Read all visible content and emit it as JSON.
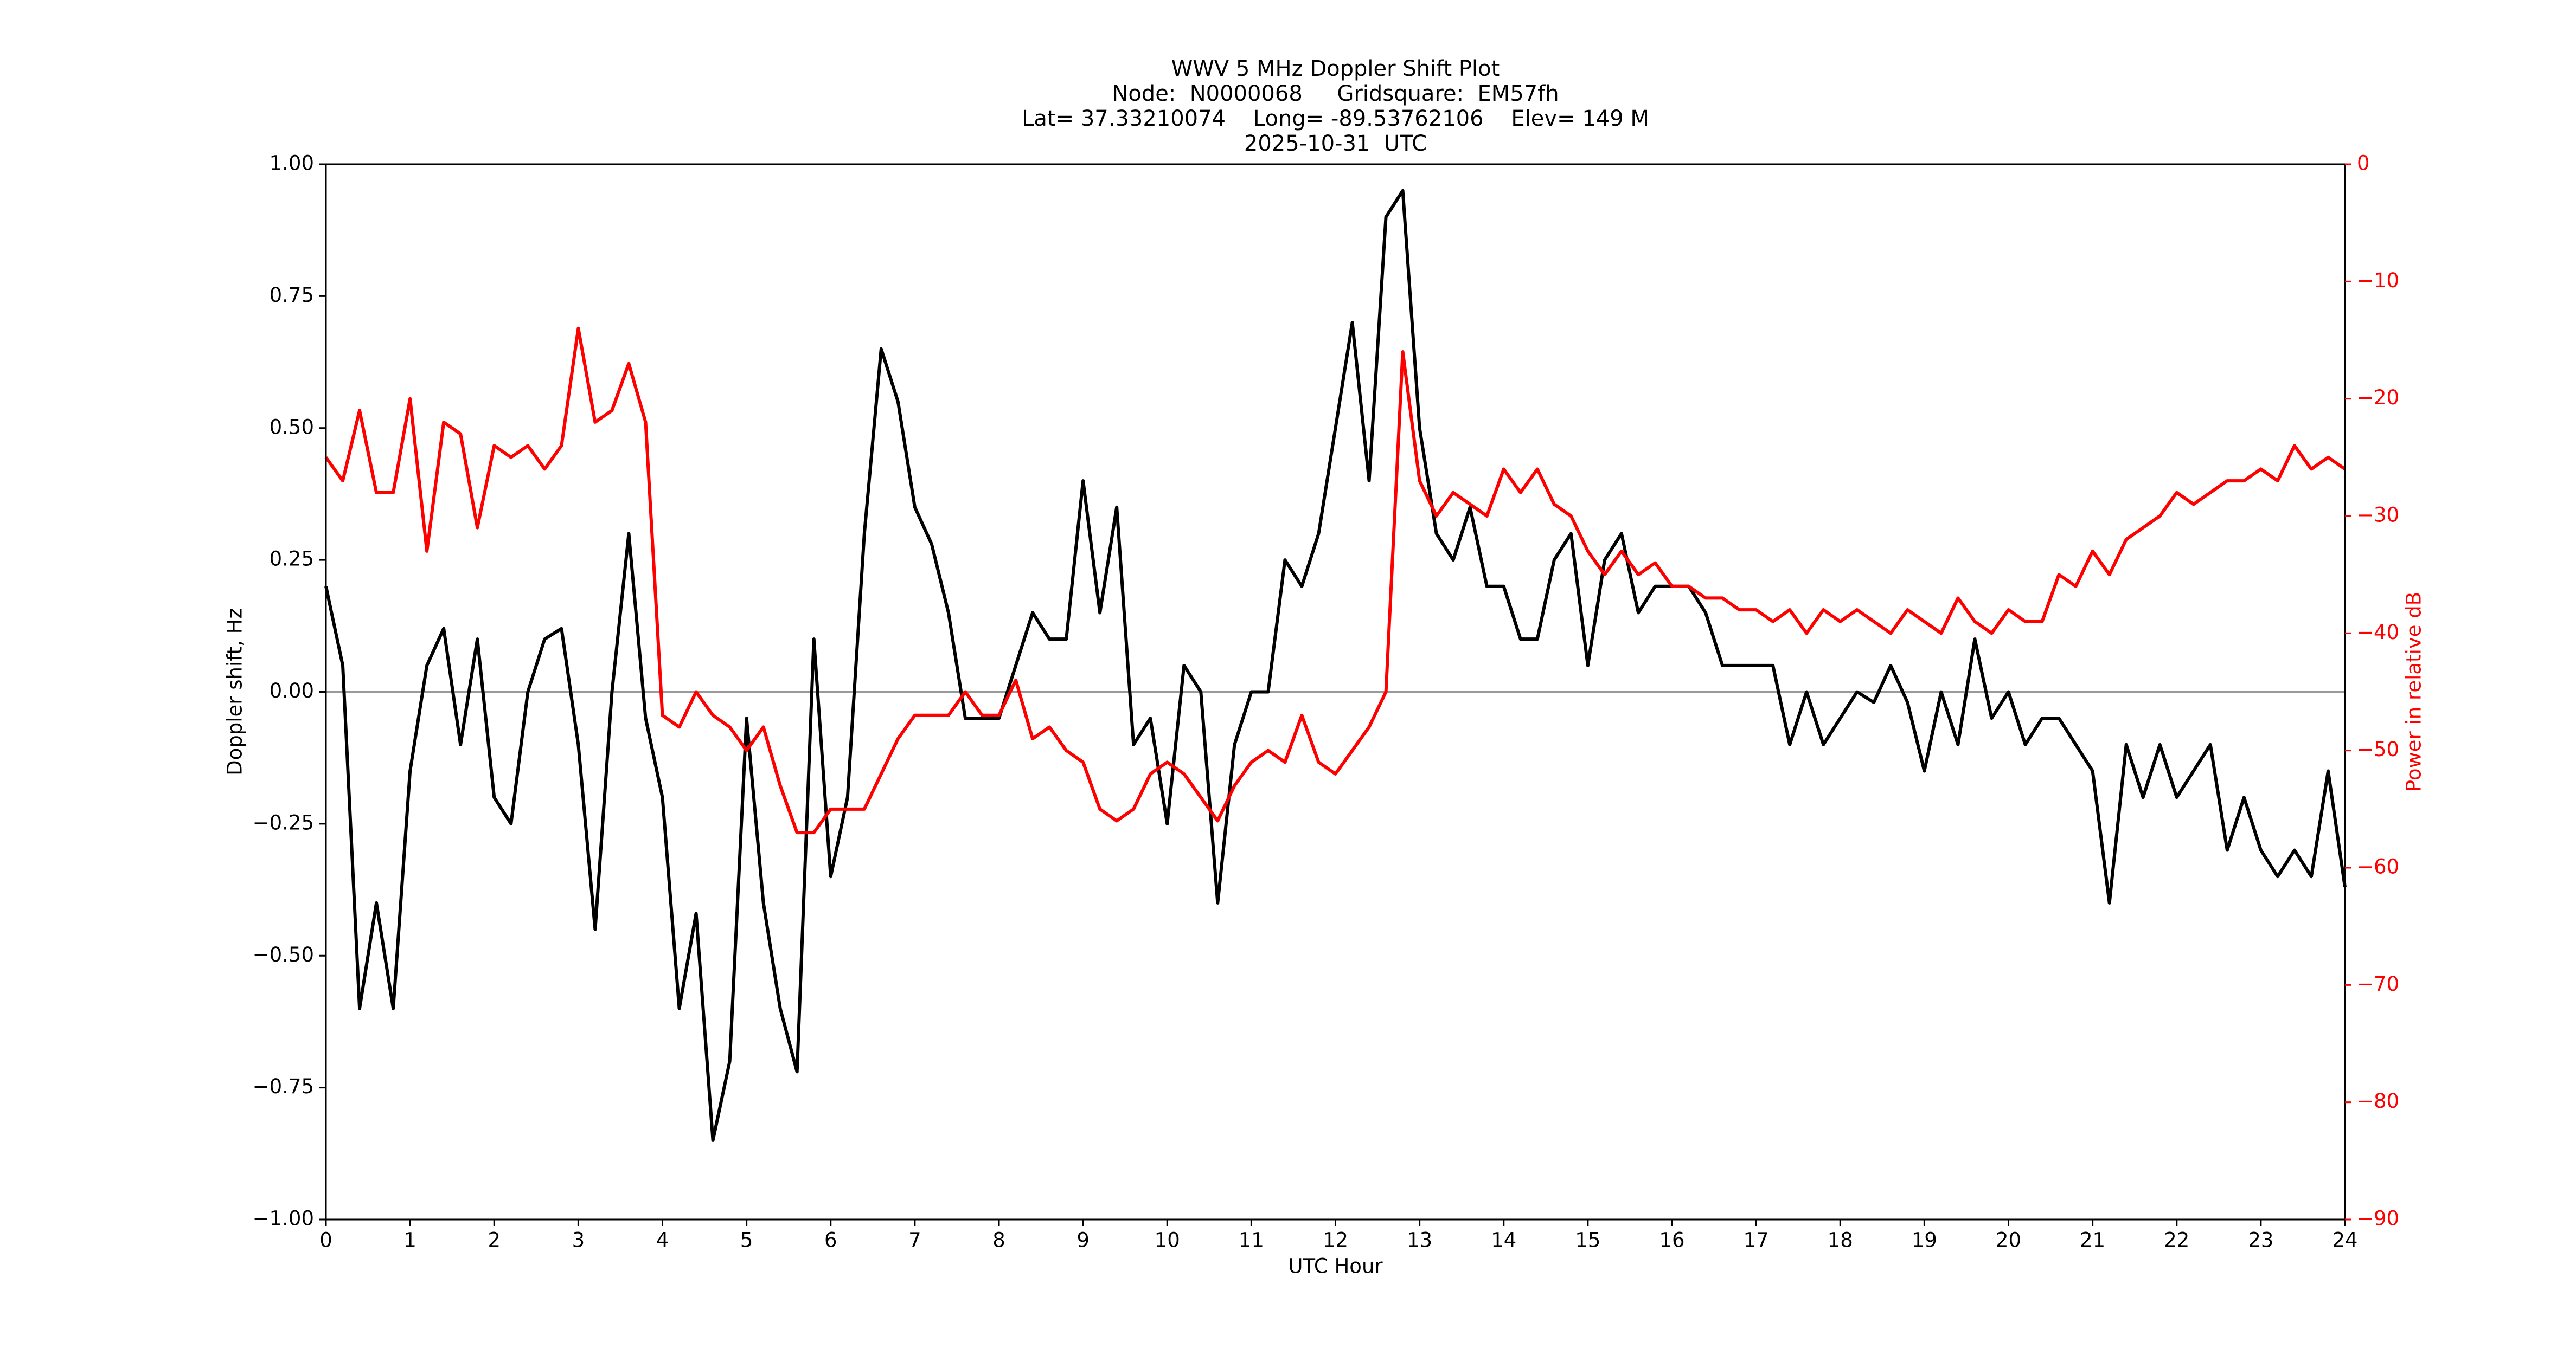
{
  "chart_data": {
    "type": "line",
    "title": [
      "WWV 5 MHz Doppler Shift Plot",
      "Node:  N0000068     Gridsquare:  EM57fh",
      "Lat= 37.33210074    Long= -89.53762106    Elev= 149 M",
      "2025-10-31  UTC"
    ],
    "x_label": "UTC Hour",
    "y_label": "Doppler shift, Hz",
    "y2_label": "Power in relative dB",
    "x": [
      0,
      0.2,
      0.4,
      0.6,
      0.8,
      1,
      1.2,
      1.4,
      1.6,
      1.8,
      2,
      2.2,
      2.4,
      2.6,
      2.8,
      3,
      3.2,
      3.4,
      3.6,
      3.8,
      4,
      4.2,
      4.4,
      4.6,
      4.8,
      5,
      5.2,
      5.4,
      5.6,
      5.8,
      6,
      6.2,
      6.4,
      6.6,
      6.8,
      7,
      7.2,
      7.4,
      7.6,
      7.8,
      8,
      8.2,
      8.4,
      8.6,
      8.8,
      9,
      9.2,
      9.4,
      9.6,
      9.8,
      10,
      10.2,
      10.4,
      10.6,
      10.8,
      11,
      11.2,
      11.4,
      11.6,
      11.8,
      12,
      12.2,
      12.4,
      12.6,
      12.8,
      13,
      13.2,
      13.4,
      13.6,
      13.8,
      14,
      14.2,
      14.4,
      14.6,
      14.8,
      15,
      15.2,
      15.4,
      15.6,
      15.8,
      16,
      16.2,
      16.4,
      16.6,
      16.8,
      17,
      17.2,
      17.4,
      17.6,
      17.8,
      18,
      18.2,
      18.4,
      18.6,
      18.8,
      19,
      19.2,
      19.4,
      19.6,
      19.8,
      20,
      20.2,
      20.4,
      20.6,
      20.8,
      21,
      21.2,
      21.4,
      21.6,
      21.8,
      22,
      22.2,
      22.4,
      22.6,
      22.8,
      23,
      23.2,
      23.4,
      23.6,
      23.8,
      24
    ],
    "series": [
      {
        "color": "#000000",
        "axis": "y",
        "values": [
          0.2,
          0.05,
          -0.6,
          -0.4,
          -0.6,
          -0.15,
          0.05,
          0.12,
          -0.1,
          0.1,
          -0.2,
          -0.25,
          0,
          0.1,
          0.12,
          -0.1,
          -0.45,
          0,
          0.3,
          -0.05,
          -0.2,
          -0.6,
          -0.42,
          -0.85,
          -0.7,
          -0.05,
          -0.4,
          -0.6,
          -0.72,
          0.1,
          -0.35,
          -0.2,
          0.3,
          0.65,
          0.55,
          0.35,
          0.28,
          0.15,
          -0.05,
          -0.05,
          -0.05,
          0.05,
          0.15,
          0.1,
          0.1,
          0.4,
          0.15,
          0.35,
          -0.1,
          -0.05,
          -0.25,
          0.05,
          0,
          -0.4,
          -0.1,
          0,
          0,
          0.25,
          0.2,
          0.3,
          0.5,
          0.7,
          0.4,
          0.9,
          0.95,
          0.5,
          0.3,
          0.25,
          0.35,
          0.2,
          0.2,
          0.1,
          0.1,
          0.25,
          0.3,
          0.05,
          0.25,
          0.3,
          0.15,
          0.2,
          0.2,
          0.2,
          0.15,
          0.05,
          0.05,
          0.05,
          0.05,
          -0.1,
          0,
          -0.1,
          -0.05,
          0,
          -0.02,
          0.05,
          -0.02,
          -0.15,
          0,
          -0.1,
          0.1,
          -0.05,
          0,
          -0.1,
          -0.05,
          -0.05,
          -0.1,
          -0.15,
          -0.4,
          -0.1,
          -0.2,
          -0.1,
          -0.2,
          -0.15,
          -0.1,
          -0.3,
          -0.2,
          -0.3,
          -0.35,
          -0.3,
          -0.35,
          -0.15,
          -0.37
        ]
      },
      {
        "color": "#ff0000",
        "axis": "y2",
        "values": [
          -25,
          -27,
          -21,
          -28,
          -28,
          -20,
          -33,
          -22,
          -23,
          -31,
          -24,
          -25,
          -24,
          -26,
          -24,
          -14,
          -22,
          -21,
          -17,
          -22,
          -47,
          -48,
          -45,
          -47,
          -48,
          -50,
          -48,
          -53,
          -57,
          -57,
          -55,
          -55,
          -55,
          -52,
          -49,
          -47,
          -47,
          -47,
          -45,
          -47,
          -47,
          -44,
          -49,
          -48,
          -50,
          -51,
          -55,
          -56,
          -55,
          -52,
          -51,
          -52,
          -54,
          -56,
          -53,
          -51,
          -50,
          -51,
          -47,
          -51,
          -52,
          -50,
          -48,
          -45,
          -16,
          -27,
          -30,
          -28,
          -29,
          -30,
          -26,
          -28,
          -26,
          -29,
          -30,
          -33,
          -35,
          -33,
          -35,
          -34,
          -36,
          -36,
          -37,
          -37,
          -38,
          -38,
          -39,
          -38,
          -40,
          -38,
          -39,
          -38,
          -39,
          -40,
          -38,
          -39,
          -40,
          -37,
          -39,
          -40,
          -38,
          -39,
          -39,
          -35,
          -36,
          -33,
          -35,
          -32,
          -31,
          -30,
          -28,
          -29,
          -28,
          -27,
          -27,
          -26,
          -27,
          -24,
          -26,
          -25,
          -26
        ]
      }
    ],
    "xlim": [
      0,
      24
    ],
    "xticks": [
      0,
      1,
      2,
      3,
      4,
      5,
      6,
      7,
      8,
      9,
      10,
      11,
      12,
      13,
      14,
      15,
      16,
      17,
      18,
      19,
      20,
      21,
      22,
      23,
      24
    ],
    "ylim": [
      -1,
      1
    ],
    "yticks": [
      {
        "value": -1,
        "label": "−1.00"
      },
      {
        "value": -0.75,
        "label": "−0.75"
      },
      {
        "value": -0.5,
        "label": "−0.50"
      },
      {
        "value": -0.25,
        "label": "−0.25"
      },
      {
        "value": 0,
        "label": "0.00"
      },
      {
        "value": 0.25,
        "label": "0.25"
      },
      {
        "value": 0.5,
        "label": "0.50"
      },
      {
        "value": 0.75,
        "label": "0.75"
      },
      {
        "value": 1,
        "label": "1.00"
      }
    ],
    "y2lim": [
      -90,
      0
    ],
    "y2ticks": [
      {
        "value": -90,
        "label": "−90"
      },
      {
        "value": -80,
        "label": "−80"
      },
      {
        "value": -70,
        "label": "−70"
      },
      {
        "value": -60,
        "label": "−60"
      },
      {
        "value": -50,
        "label": "−50"
      },
      {
        "value": -40,
        "label": "−40"
      },
      {
        "value": -30,
        "label": "−30"
      },
      {
        "value": -20,
        "label": "−20"
      },
      {
        "value": -10,
        "label": "−10"
      },
      0
    ],
    "y2_color": "#ff0000",
    "hline": 0,
    "hline_color": "#999999"
  }
}
